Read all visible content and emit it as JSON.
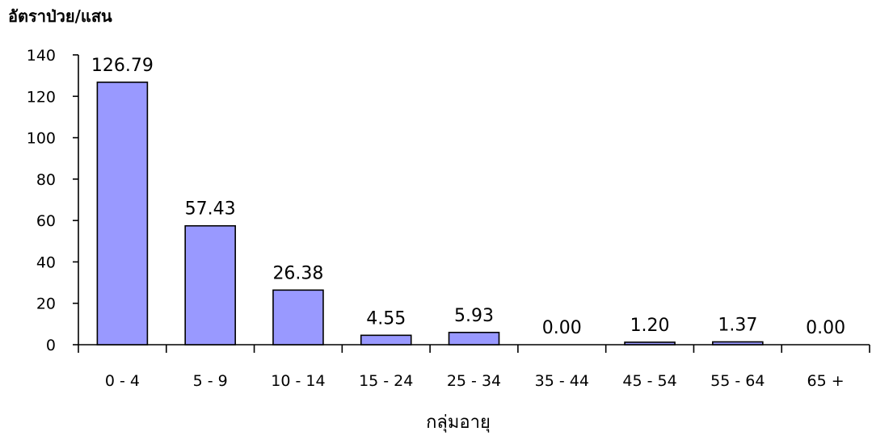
{
  "chart_data": {
    "type": "bar",
    "ylabel": "อัตราป่วย/แสน",
    "xlabel": "กลุ่มอายุ",
    "categories": [
      "0 - 4",
      "5 - 9",
      "10 - 14",
      "15 - 24",
      "25 - 34",
      "35 - 44",
      "45 - 54",
      "55 - 64",
      "65 +"
    ],
    "values": [
      126.79,
      57.43,
      26.38,
      4.55,
      5.93,
      0.0,
      1.2,
      1.37,
      0.0
    ],
    "data_labels": [
      "126.79",
      "57.43",
      "26.38",
      "4.55",
      "5.93",
      "0.00",
      "1.20",
      "1.37",
      "0.00"
    ],
    "ylim": [
      0,
      140
    ],
    "yticks": [
      0,
      20,
      40,
      60,
      80,
      100,
      120,
      140
    ],
    "ytick_labels": [
      "0",
      "20",
      "40",
      "60",
      "80",
      "100",
      "120",
      "140"
    ],
    "grid": false,
    "legend": "none",
    "bar_color": "#9999ff",
    "bar_edge_color": "#000000"
  }
}
